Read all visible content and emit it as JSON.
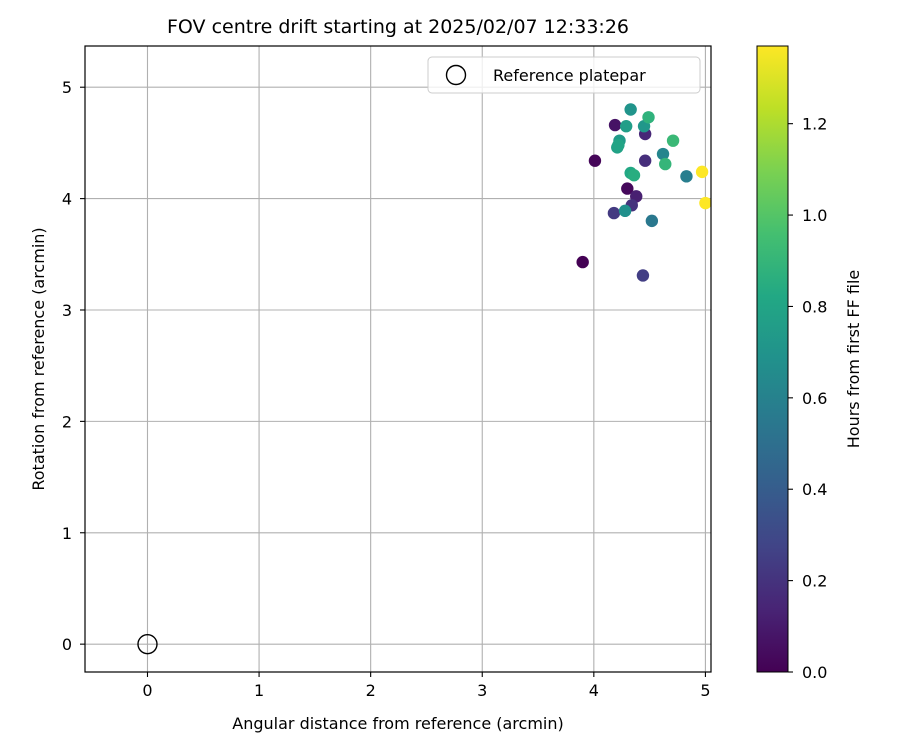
{
  "chart_data": {
    "type": "scatter",
    "title": "FOV centre drift starting at 2025/02/07 12:33:26",
    "xlabel": "Angular distance from reference (arcmin)",
    "ylabel": "Rotation from reference (arcmin)",
    "xlim": [
      -0.56,
      5.05
    ],
    "ylim": [
      -0.25,
      5.37
    ],
    "xticks": [
      0,
      1,
      2,
      3,
      4,
      5
    ],
    "yticks": [
      0,
      1,
      2,
      3,
      4,
      5
    ],
    "grid": true,
    "legend": {
      "placement": "top-right",
      "entries": [
        "Reference platepar"
      ]
    },
    "reference_point": {
      "x": 0,
      "y": 0,
      "label": "Reference platepar"
    },
    "colorbar": {
      "label": "Hours from first FF file",
      "colormap": "viridis",
      "range": [
        0,
        1.37
      ],
      "ticks": [
        0.0,
        0.2,
        0.4,
        0.6,
        0.8,
        1.0,
        1.2
      ],
      "tick_labels": [
        "0.0",
        "0.2",
        "0.4",
        "0.6",
        "0.8",
        "1.0",
        "1.2"
      ]
    },
    "points": [
      {
        "x": 3.9,
        "y": 3.43,
        "c": 0.0
      },
      {
        "x": 4.01,
        "y": 4.34,
        "c": 0.02
      },
      {
        "x": 4.3,
        "y": 4.09,
        "c": 0.03
      },
      {
        "x": 4.19,
        "y": 4.66,
        "c": 0.07
      },
      {
        "x": 4.38,
        "y": 4.02,
        "c": 0.12
      },
      {
        "x": 4.46,
        "y": 4.58,
        "c": 0.15
      },
      {
        "x": 4.46,
        "y": 4.34,
        "c": 0.18
      },
      {
        "x": 4.34,
        "y": 3.94,
        "c": 0.2
      },
      {
        "x": 4.18,
        "y": 3.87,
        "c": 0.23
      },
      {
        "x": 4.44,
        "y": 3.31,
        "c": 0.25
      },
      {
        "x": 4.52,
        "y": 3.8,
        "c": 0.55
      },
      {
        "x": 4.83,
        "y": 4.2,
        "c": 0.58
      },
      {
        "x": 4.62,
        "y": 4.4,
        "c": 0.62
      },
      {
        "x": 4.28,
        "y": 3.89,
        "c": 0.68
      },
      {
        "x": 4.33,
        "y": 4.8,
        "c": 0.7
      },
      {
        "x": 4.45,
        "y": 4.65,
        "c": 0.72
      },
      {
        "x": 4.23,
        "y": 4.52,
        "c": 0.74
      },
      {
        "x": 4.29,
        "y": 4.65,
        "c": 0.76
      },
      {
        "x": 4.21,
        "y": 4.46,
        "c": 0.78
      },
      {
        "x": 4.22,
        "y": 4.48,
        "c": 0.8
      },
      {
        "x": 4.33,
        "y": 4.23,
        "c": 0.82
      },
      {
        "x": 4.36,
        "y": 4.21,
        "c": 0.85
      },
      {
        "x": 4.49,
        "y": 4.73,
        "c": 0.88
      },
      {
        "x": 4.64,
        "y": 4.31,
        "c": 0.9
      },
      {
        "x": 4.71,
        "y": 4.52,
        "c": 0.92
      },
      {
        "x": 4.97,
        "y": 4.24,
        "c": 1.37
      },
      {
        "x": 5.0,
        "y": 3.96,
        "c": 1.37
      }
    ]
  }
}
